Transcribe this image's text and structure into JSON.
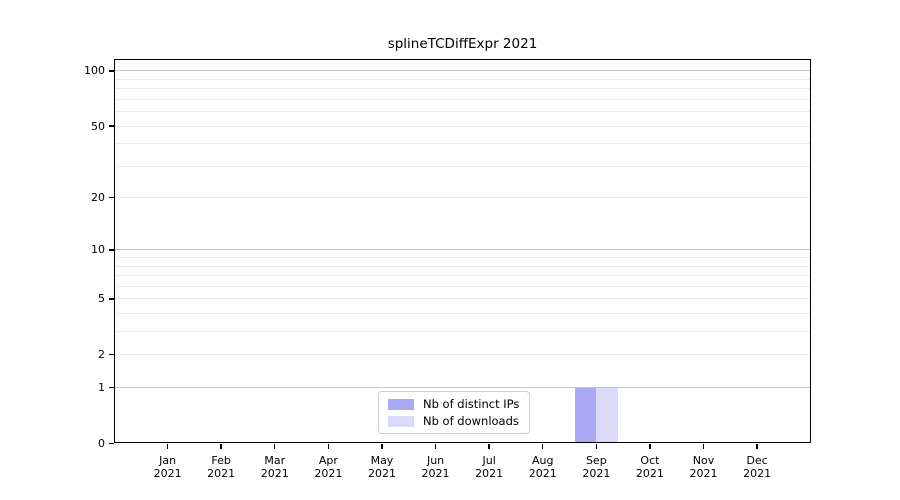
{
  "chart_data": {
    "type": "bar",
    "title": "splineTCDiffExpr 2021",
    "categories": [
      {
        "month": "Jan",
        "year": "2021"
      },
      {
        "month": "Feb",
        "year": "2021"
      },
      {
        "month": "Mar",
        "year": "2021"
      },
      {
        "month": "Apr",
        "year": "2021"
      },
      {
        "month": "May",
        "year": "2021"
      },
      {
        "month": "Jun",
        "year": "2021"
      },
      {
        "month": "Jul",
        "year": "2021"
      },
      {
        "month": "Aug",
        "year": "2021"
      },
      {
        "month": "Sep",
        "year": "2021"
      },
      {
        "month": "Oct",
        "year": "2021"
      },
      {
        "month": "Nov",
        "year": "2021"
      },
      {
        "month": "Dec",
        "year": "2021"
      }
    ],
    "series": [
      {
        "name": "Nb of distinct IPs",
        "color": "#a8a8f4",
        "values": [
          0,
          0,
          0,
          0,
          0,
          0,
          0,
          0,
          1,
          0,
          0,
          0
        ]
      },
      {
        "name": "Nb of downloads",
        "color": "#dbdbf9",
        "values": [
          0,
          0,
          0,
          0,
          0,
          0,
          0,
          0,
          1,
          0,
          0,
          0
        ]
      }
    ],
    "xlabel": "",
    "ylabel": "",
    "y_scale": "log10(1+value)",
    "ylim": [
      0,
      115
    ],
    "y_ticks": [
      0,
      1,
      2,
      5,
      10,
      20,
      50,
      100
    ],
    "y_major_gridlines": [
      1,
      10,
      100
    ],
    "y_minor_gridlines": [
      3,
      4,
      6,
      7,
      8,
      9,
      30,
      40,
      60,
      70,
      80,
      90
    ],
    "grid": true,
    "grid_major_color": "#c7c7c7",
    "grid_minor_color": "#e9e9e9",
    "frame_color": "#000000",
    "legend_position": "bottom-center-inside"
  }
}
